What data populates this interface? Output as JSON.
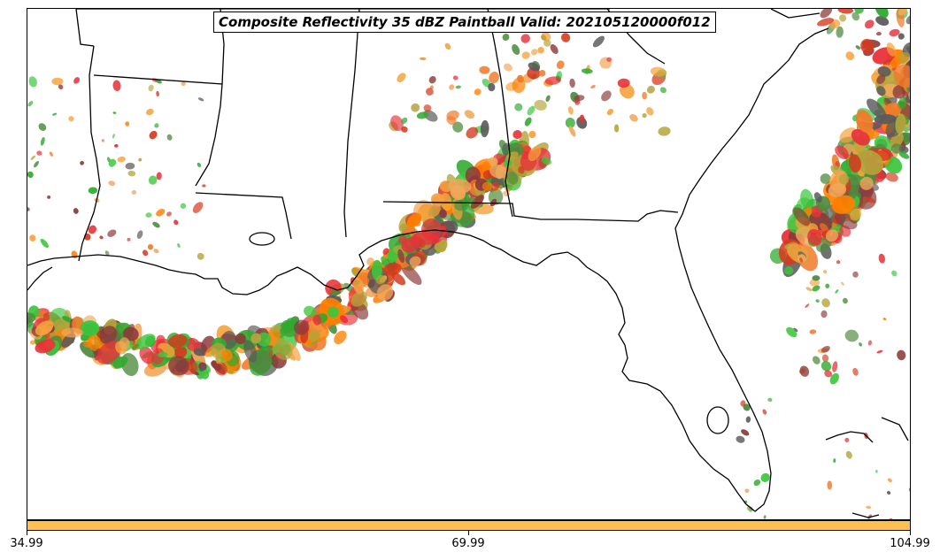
{
  "title": "Composite Reflectivity 35 dBZ Paintball Valid: 202105120000f012",
  "colorbar": {
    "color": "#FFC04D",
    "ticks": [
      "34.99",
      "69.99",
      "104.99"
    ]
  },
  "colors": {
    "member_palette": [
      "#E8323A",
      "#FF7F00",
      "#D43A1E",
      "#F6A23C",
      "#3CC63C",
      "#4E8B3E",
      "#8B3A3A",
      "#B4A53C",
      "#5A5A5A",
      "#F07A2A",
      "#F2A85C",
      "#2EAA2E"
    ],
    "coastline": "#000000",
    "background": "#FFFFFF"
  }
}
